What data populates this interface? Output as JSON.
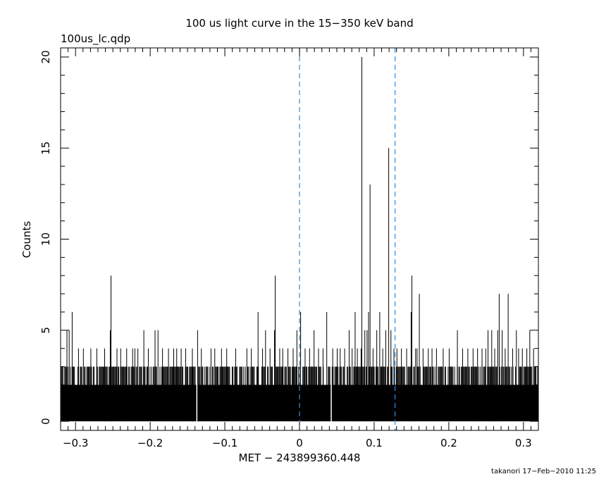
{
  "chart_data": {
    "type": "bar",
    "title": "100 us light curve in the 15−350 keV band",
    "file_label": "100us_lc.qdp",
    "xlabel": "MET − 243899360.448",
    "ylabel": "Counts",
    "credit": "takanori 17−Feb−2010 11:25",
    "xlim": [
      -0.32,
      0.32
    ],
    "ylim": [
      -0.5,
      20.5
    ],
    "bin_width": 0.0001,
    "x_ticks": [
      {
        "value": -0.3,
        "label": "−0.3"
      },
      {
        "value": -0.2,
        "label": "−0.2"
      },
      {
        "value": -0.1,
        "label": "−0.1"
      },
      {
        "value": 0,
        "label": "0"
      },
      {
        "value": 0.1,
        "label": "0.1"
      },
      {
        "value": 0.2,
        "label": "0.2"
      },
      {
        "value": 0.3,
        "label": "0.3"
      }
    ],
    "y_ticks": [
      {
        "value": 0,
        "label": "0"
      },
      {
        "value": 5,
        "label": "5"
      },
      {
        "value": 10,
        "label": "10"
      },
      {
        "value": 15,
        "label": "15"
      },
      {
        "value": 20,
        "label": "20"
      }
    ],
    "reference_lines": [
      {
        "x": 0,
        "style": "dashed",
        "color": "#1e90ff"
      },
      {
        "x": 0.128,
        "style": "dashed",
        "color": "#1e90ff"
      }
    ],
    "baseline_counts": 2,
    "background_max": 3,
    "series": [
      {
        "points": [
          {
            "x": -0.3115,
            "y": 5
          },
          {
            "x": -0.3085,
            "y": 5
          },
          {
            "x": -0.3045,
            "y": 6
          },
          {
            "x": -0.296,
            "y": 4
          },
          {
            "x": -0.2895,
            "y": 4
          },
          {
            "x": -0.2795,
            "y": 4
          },
          {
            "x": -0.2715,
            "y": 4
          },
          {
            "x": -0.261,
            "y": 4
          },
          {
            "x": -0.2535,
            "y": 5
          },
          {
            "x": -0.2525,
            "y": 8
          },
          {
            "x": -0.2445,
            "y": 4
          },
          {
            "x": -0.2395,
            "y": 4
          },
          {
            "x": -0.2315,
            "y": 4
          },
          {
            "x": -0.2235,
            "y": 4
          },
          {
            "x": -0.2205,
            "y": 4
          },
          {
            "x": -0.2165,
            "y": 4
          },
          {
            "x": -0.2085,
            "y": 5
          },
          {
            "x": -0.2025,
            "y": 4
          },
          {
            "x": -0.1935,
            "y": 5
          },
          {
            "x": -0.1895,
            "y": 5
          },
          {
            "x": -0.1835,
            "y": 4
          },
          {
            "x": -0.1755,
            "y": 4
          },
          {
            "x": -0.1685,
            "y": 4
          },
          {
            "x": -0.1645,
            "y": 4
          },
          {
            "x": -0.1585,
            "y": 4
          },
          {
            "x": -0.1525,
            "y": 4
          },
          {
            "x": -0.1435,
            "y": 4
          },
          {
            "x": -0.1365,
            "y": 5
          },
          {
            "x": -0.1315,
            "y": 4
          },
          {
            "x": -0.1185,
            "y": 4
          },
          {
            "x": -0.1135,
            "y": 4
          },
          {
            "x": -0.1045,
            "y": 4
          },
          {
            "x": -0.0975,
            "y": 4
          },
          {
            "x": -0.0855,
            "y": 4
          },
          {
            "x": -0.0705,
            "y": 4
          },
          {
            "x": -0.0645,
            "y": 4
          },
          {
            "x": -0.0555,
            "y": 6
          },
          {
            "x": -0.0495,
            "y": 4
          },
          {
            "x": -0.0455,
            "y": 5
          },
          {
            "x": -0.0395,
            "y": 4
          },
          {
            "x": -0.0335,
            "y": 5
          },
          {
            "x": -0.0325,
            "y": 8
          },
          {
            "x": -0.0265,
            "y": 4
          },
          {
            "x": -0.0225,
            "y": 4
          },
          {
            "x": -0.0155,
            "y": 4
          },
          {
            "x": -0.0085,
            "y": 4
          },
          {
            "x": -0.0035,
            "y": 5
          },
          {
            "x": 0.0015,
            "y": 6
          },
          {
            "x": 0.0075,
            "y": 4
          },
          {
            "x": 0.0135,
            "y": 4
          },
          {
            "x": 0.0195,
            "y": 5
          },
          {
            "x": 0.0255,
            "y": 4
          },
          {
            "x": 0.0315,
            "y": 4
          },
          {
            "x": 0.0365,
            "y": 6
          },
          {
            "x": 0.0445,
            "y": 4
          },
          {
            "x": 0.0505,
            "y": 4
          },
          {
            "x": 0.0545,
            "y": 4
          },
          {
            "x": 0.0605,
            "y": 4
          },
          {
            "x": 0.0665,
            "y": 5
          },
          {
            "x": 0.0705,
            "y": 4
          },
          {
            "x": 0.0745,
            "y": 6
          },
          {
            "x": 0.0775,
            "y": 4
          },
          {
            "x": 0.0825,
            "y": 4
          },
          {
            "x": 0.0835,
            "y": 20
          },
          {
            "x": 0.0875,
            "y": 5
          },
          {
            "x": 0.0905,
            "y": 5
          },
          {
            "x": 0.0925,
            "y": 6
          },
          {
            "x": 0.0945,
            "y": 13
          },
          {
            "x": 0.0985,
            "y": 4
          },
          {
            "x": 0.1035,
            "y": 5
          },
          {
            "x": 0.1075,
            "y": 6
          },
          {
            "x": 0.1115,
            "y": 4
          },
          {
            "x": 0.1155,
            "y": 5
          },
          {
            "x": 0.1195,
            "y": 15
          },
          {
            "x": 0.1225,
            "y": 5
          },
          {
            "x": 0.1265,
            "y": 4
          },
          {
            "x": 0.1305,
            "y": 4
          },
          {
            "x": 0.1365,
            "y": 4
          },
          {
            "x": 0.1435,
            "y": 4
          },
          {
            "x": 0.1495,
            "y": 6
          },
          {
            "x": 0.1505,
            "y": 8
          },
          {
            "x": 0.1555,
            "y": 4
          },
          {
            "x": 0.1575,
            "y": 4
          },
          {
            "x": 0.1605,
            "y": 7
          },
          {
            "x": 0.1655,
            "y": 4
          },
          {
            "x": 0.1725,
            "y": 4
          },
          {
            "x": 0.1775,
            "y": 4
          },
          {
            "x": 0.1835,
            "y": 4
          },
          {
            "x": 0.1925,
            "y": 4
          },
          {
            "x": 0.2005,
            "y": 4
          },
          {
            "x": 0.2115,
            "y": 5
          },
          {
            "x": 0.2185,
            "y": 4
          },
          {
            "x": 0.2255,
            "y": 4
          },
          {
            "x": 0.2325,
            "y": 4
          },
          {
            "x": 0.2385,
            "y": 4
          },
          {
            "x": 0.2445,
            "y": 4
          },
          {
            "x": 0.2495,
            "y": 4
          },
          {
            "x": 0.2525,
            "y": 5
          },
          {
            "x": 0.2575,
            "y": 5
          },
          {
            "x": 0.2615,
            "y": 4
          },
          {
            "x": 0.2655,
            "y": 5
          },
          {
            "x": 0.2675,
            "y": 7
          },
          {
            "x": 0.2715,
            "y": 5
          },
          {
            "x": 0.2755,
            "y": 4
          },
          {
            "x": 0.2795,
            "y": 7
          },
          {
            "x": 0.2855,
            "y": 4
          },
          {
            "x": 0.2905,
            "y": 5
          },
          {
            "x": 0.2935,
            "y": 4
          },
          {
            "x": 0.2985,
            "y": 4
          },
          {
            "x": 0.3045,
            "y": 4
          },
          {
            "x": 0.3085,
            "y": 5
          },
          {
            "x": 0.3135,
            "y": 4
          },
          {
            "x": -0.1375,
            "y": 0
          },
          {
            "x": 0.0425,
            "y": 0
          }
        ]
      }
    ]
  }
}
